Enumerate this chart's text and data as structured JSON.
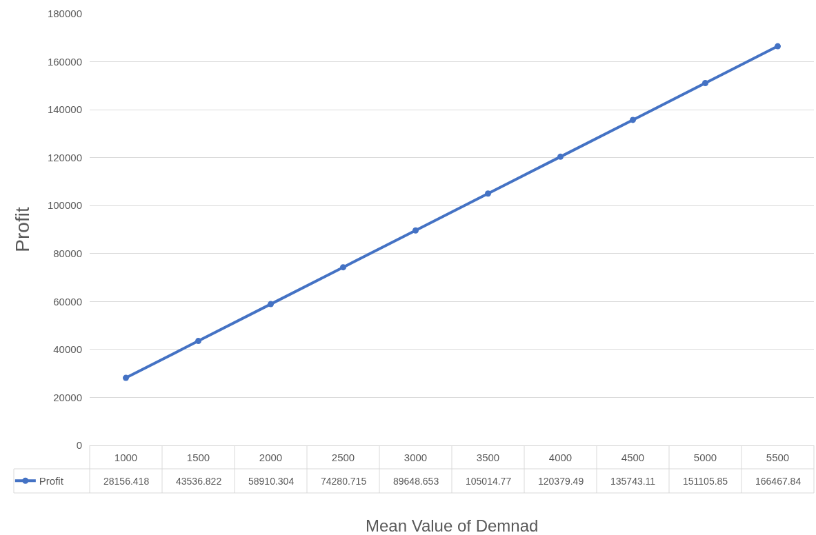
{
  "chart_data": {
    "type": "line",
    "xlabel": "Mean Value of Demnad",
    "ylabel": "Profit",
    "categories": [
      "1000",
      "1500",
      "2000",
      "2500",
      "3000",
      "3500",
      "4000",
      "4500",
      "5000",
      "5500"
    ],
    "series": [
      {
        "name": "Profit",
        "color": "#4472c4",
        "values": [
          28156.418,
          43536.822,
          58910.304,
          74280.715,
          89648.653,
          105014.77,
          120379.49,
          135743.11,
          151105.85,
          166467.84
        ]
      }
    ],
    "ylim": [
      0,
      180000
    ],
    "yticks": [
      0,
      20000,
      40000,
      60000,
      80000,
      100000,
      120000,
      140000,
      160000,
      180000
    ],
    "grid": "y",
    "legend": "bottom left",
    "marker": "circle",
    "line_style": "solid",
    "data_labels": true
  }
}
